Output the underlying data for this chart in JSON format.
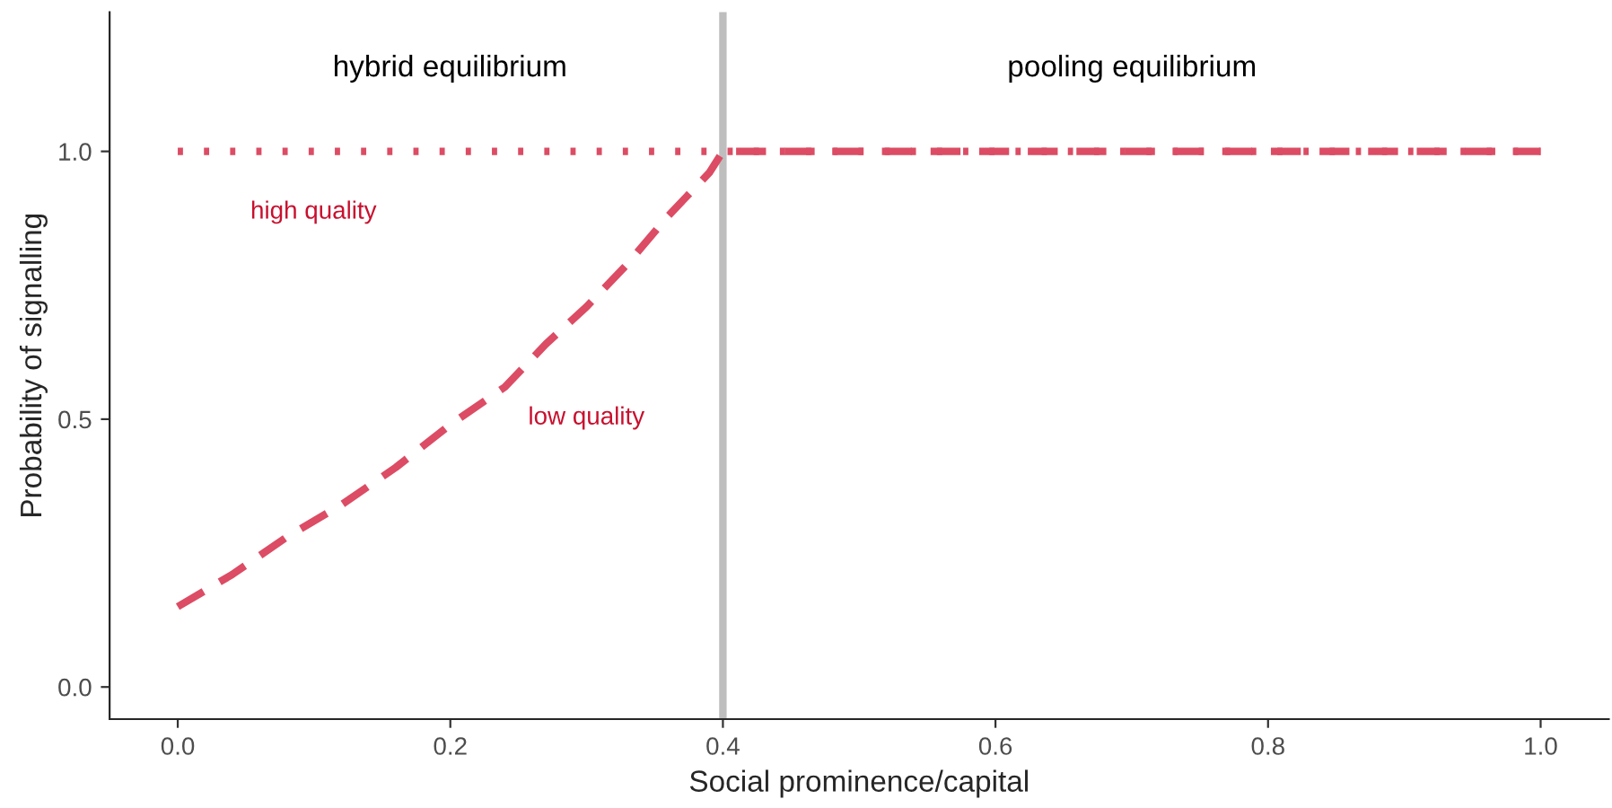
{
  "chart_data": {
    "type": "line",
    "xlabel": "Social prominence/capital",
    "ylabel": "Probability of signalling",
    "xlim": [
      -0.05,
      1.05
    ],
    "ylim": [
      -0.06,
      1.26
    ],
    "xticks": [
      {
        "value": 0,
        "label": "0.0"
      },
      0.2,
      0.4,
      0.6,
      0.8,
      {
        "value": 1,
        "label": "1.0"
      }
    ],
    "yticks": [
      {
        "value": 0,
        "label": "0.0"
      },
      0.5,
      {
        "value": 1,
        "label": "1.0"
      }
    ],
    "grid": false,
    "legend": false,
    "series": [
      {
        "name": "high quality",
        "color": "#dc4c64",
        "line_style": "dotted",
        "x": [
          0,
          1
        ],
        "values": [
          1,
          1
        ]
      },
      {
        "name": "low quality",
        "color": "#dc4c64",
        "line_style": "dashed",
        "x": [
          0,
          0.04,
          0.08,
          0.12,
          0.16,
          0.2,
          0.24,
          0.27,
          0.3,
          0.33,
          0.36,
          0.39,
          0.4,
          1
        ],
        "values": [
          0.15,
          0.21,
          0.28,
          0.34,
          0.41,
          0.49,
          0.56,
          0.64,
          0.71,
          0.79,
          0.88,
          0.96,
          1,
          1
        ]
      }
    ],
    "ref_lines": [
      {
        "axis": "x",
        "value": 0.4,
        "color": "#bebebe"
      }
    ],
    "annotations": [
      "hybrid equilibrium",
      "pooling equilibrium"
    ]
  }
}
